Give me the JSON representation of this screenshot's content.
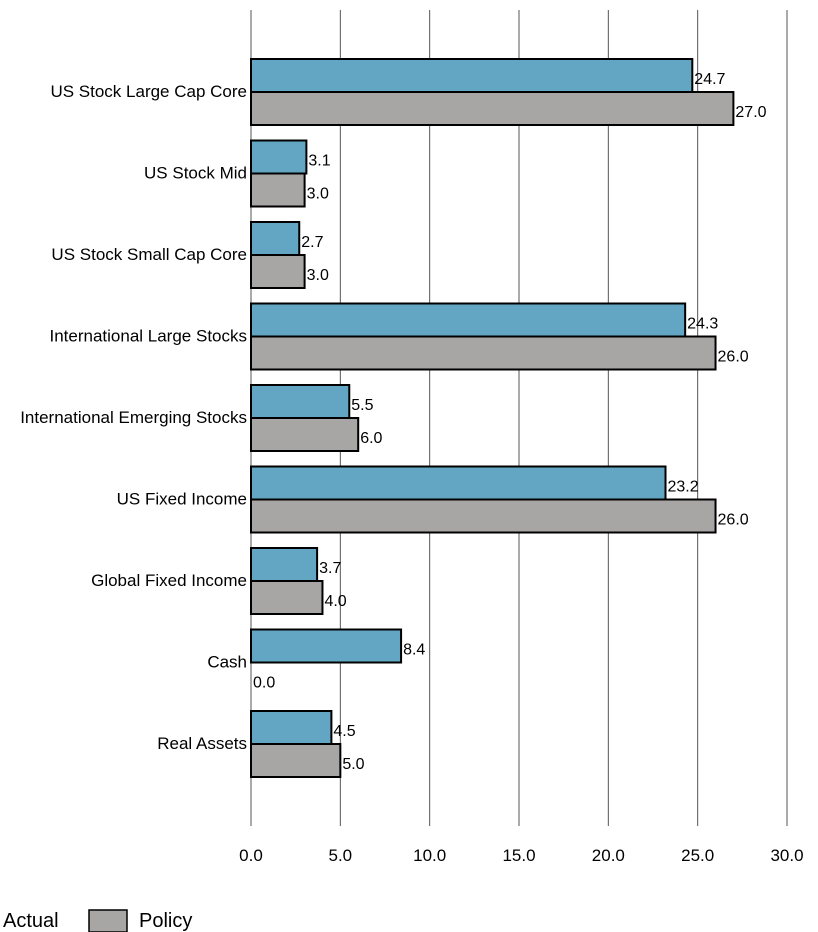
{
  "chart_data": {
    "type": "bar",
    "orientation": "horizontal",
    "categories": [
      "US Stock Large Cap Core",
      "US Stock Mid",
      "US Stock Small Cap Core",
      "International Large Stocks",
      "International Emerging Stocks",
      "US Fixed Income",
      "Global Fixed Income",
      "Cash",
      "Real Assets"
    ],
    "series": [
      {
        "name": "Actual",
        "color": "#62a6c4",
        "values": [
          24.7,
          3.1,
          2.7,
          24.3,
          5.5,
          23.2,
          3.7,
          8.4,
          4.5
        ],
        "labels": [
          "24.7",
          "3.1",
          "2.7",
          "24.3",
          "5.5",
          "23.2",
          "3.7",
          "8.4",
          "4.5"
        ]
      },
      {
        "name": "Policy",
        "color": "#a8a5a5",
        "values": [
          27.0,
          3.0,
          3.0,
          26.0,
          6.0,
          26.0,
          4.0,
          0.0,
          5.0
        ],
        "labels": [
          "27.0",
          "3.0",
          "3.0",
          "26.0",
          "6.0",
          "26.0",
          "4.0",
          "0.0",
          "5.0"
        ]
      }
    ],
    "xlim": [
      0,
      30
    ],
    "xticks": [
      0,
      5,
      10,
      15,
      20,
      25,
      30
    ],
    "xtick_labels": [
      "0.0",
      "5.0",
      "10.0",
      "15.0",
      "20.0",
      "25.0",
      "30.0"
    ],
    "grid": "vertical",
    "legend_position": "bottom-left"
  }
}
